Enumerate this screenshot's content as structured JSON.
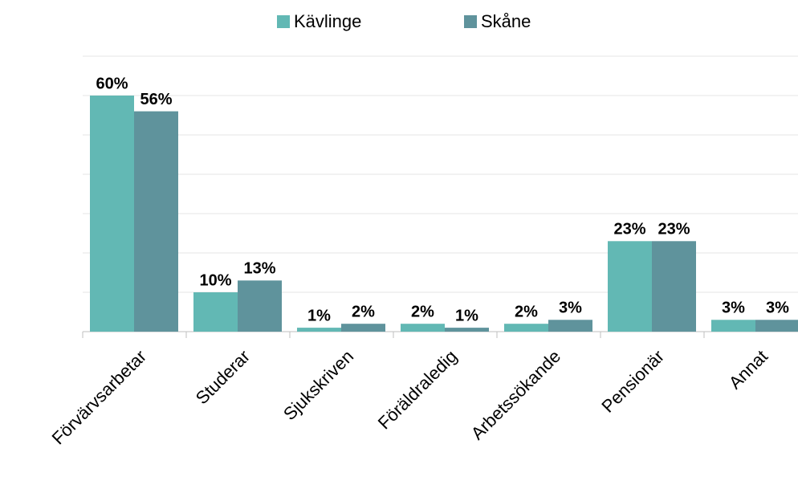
{
  "chart_data": {
    "type": "bar",
    "categories": [
      "Förvärvsarbetar",
      "Studerar",
      "Sjukskriven",
      "Föräldraledig",
      "Arbetssökande",
      "Pensionär",
      "Annat"
    ],
    "series": [
      {
        "name": "Kävlinge",
        "color": "#62b8b4",
        "values": [
          60,
          10,
          1,
          2,
          2,
          23,
          3
        ],
        "value_labels": [
          "60%",
          "10%",
          "1%",
          "2%",
          "2%",
          "23%",
          "3%"
        ]
      },
      {
        "name": "Skåne",
        "color": "#5f939c",
        "values": [
          56,
          13,
          2,
          1,
          3,
          23,
          3
        ],
        "value_labels": [
          "56%",
          "13%",
          "2%",
          "1%",
          "3%",
          "23%",
          "3%"
        ]
      }
    ],
    "ylim": [
      0,
      70
    ],
    "yticks": [
      0,
      10,
      20,
      30,
      40,
      50,
      60,
      70
    ],
    "grid": true,
    "legend": "top"
  }
}
